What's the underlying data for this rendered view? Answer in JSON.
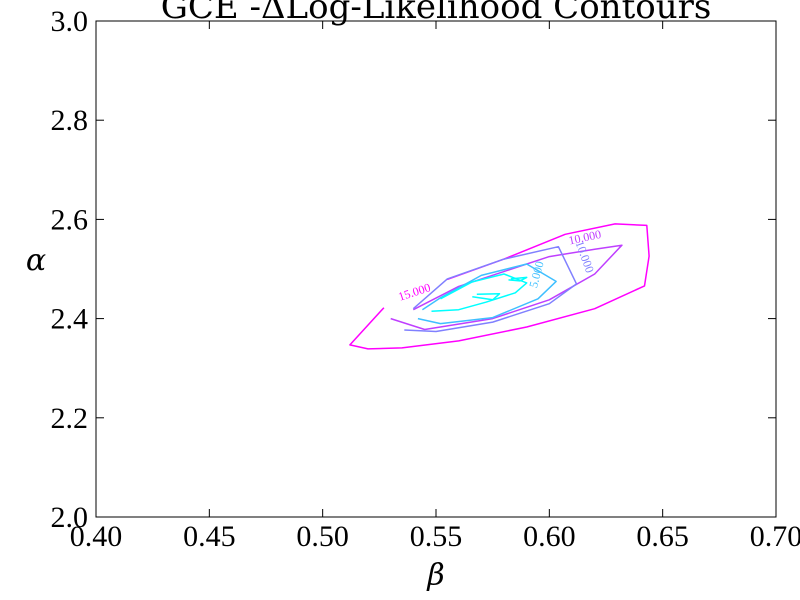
{
  "chart_data": {
    "type": "contour",
    "title": "GCE -ΔLog-Likelihood Contours",
    "xlabel": "β",
    "ylabel": "α",
    "xlim": [
      0.4,
      0.7
    ],
    "ylim": [
      2.0,
      3.0
    ],
    "x_ticks": [
      "0.40",
      "0.45",
      "0.50",
      "0.55",
      "0.60",
      "0.65",
      "0.70"
    ],
    "y_ticks": [
      "2.0",
      "2.2",
      "2.4",
      "2.6",
      "2.8",
      "3.0"
    ],
    "grid": false,
    "levels": [
      {
        "label": "15.000",
        "color": "#ff00ff",
        "label_at": [
          0.541,
          2.446
        ],
        "label_angle": -18,
        "paths": [
          [
            [
              0.527,
              2.422
            ],
            [
              0.512,
              2.347
            ],
            [
              0.52,
              2.339
            ],
            [
              0.535,
              2.341
            ],
            [
              0.56,
              2.355
            ],
            [
              0.59,
              2.383
            ],
            [
              0.62,
              2.42
            ],
            [
              0.642,
              2.466
            ],
            [
              0.644,
              2.526
            ],
            [
              0.643,
              2.588
            ],
            [
              0.629,
              2.591
            ],
            [
              0.607,
              2.57
            ],
            [
              0.58,
              2.52
            ],
            [
              0.555,
              2.479
            ]
          ]
        ]
      },
      {
        "label": "10.000",
        "color": "#bf3fff",
        "label_at": [
          0.616,
          2.556
        ],
        "label_angle": -12,
        "paths": [
          [
            [
              0.53,
              2.4
            ],
            [
              0.545,
              2.378
            ],
            [
              0.575,
              2.4
            ],
            [
              0.6,
              2.438
            ],
            [
              0.62,
              2.49
            ],
            [
              0.632,
              2.548
            ],
            [
              0.62,
              2.54
            ],
            [
              0.6,
              2.525
            ],
            [
              0.56,
              2.465
            ],
            [
              0.54,
              2.418
            ]
          ]
        ]
      },
      {
        "label": "10.000",
        "color": "#8080ff",
        "label_at": [
          0.614,
          2.522
        ],
        "label_angle": 70,
        "paths": [
          [
            [
              0.536,
              2.377
            ],
            [
              0.55,
              2.374
            ],
            [
              0.575,
              2.393
            ],
            [
              0.6,
              2.43
            ],
            [
              0.612,
              2.47
            ],
            [
              0.604,
              2.545
            ],
            [
              0.58,
              2.52
            ],
            [
              0.555,
              2.48
            ],
            [
              0.54,
              2.42
            ]
          ]
        ]
      },
      {
        "label": "5.000",
        "color": "#3fbfff",
        "label_at": [
          0.596,
          2.487
        ],
        "label_angle": -75,
        "paths": [
          [
            [
              0.542,
              2.4
            ],
            [
              0.552,
              2.39
            ],
            [
              0.575,
              2.402
            ],
            [
              0.595,
              2.44
            ],
            [
              0.603,
              2.475
            ],
            [
              0.59,
              2.51
            ],
            [
              0.57,
              2.487
            ],
            [
              0.552,
              2.442
            ],
            [
              0.544,
              2.418
            ]
          ]
        ]
      },
      {
        "label": "",
        "color": "#00ffff",
        "label_at": null,
        "label_angle": 0,
        "paths": [
          [
            [
              0.548,
              2.415
            ],
            [
              0.56,
              2.418
            ],
            [
              0.572,
              2.433
            ],
            [
              0.585,
              2.452
            ],
            [
              0.59,
              2.472
            ],
            [
              0.58,
              2.49
            ],
            [
              0.566,
              2.474
            ],
            [
              0.552,
              2.44
            ]
          ],
          [
            [
              0.568,
              2.449
            ],
            [
              0.578,
              2.45
            ],
            [
              0.575,
              2.438
            ],
            [
              0.566,
              2.444
            ]
          ],
          [
            [
              0.583,
              2.48
            ],
            [
              0.59,
              2.483
            ],
            [
              0.587,
              2.476
            ],
            [
              0.582,
              2.478
            ]
          ]
        ]
      }
    ]
  }
}
